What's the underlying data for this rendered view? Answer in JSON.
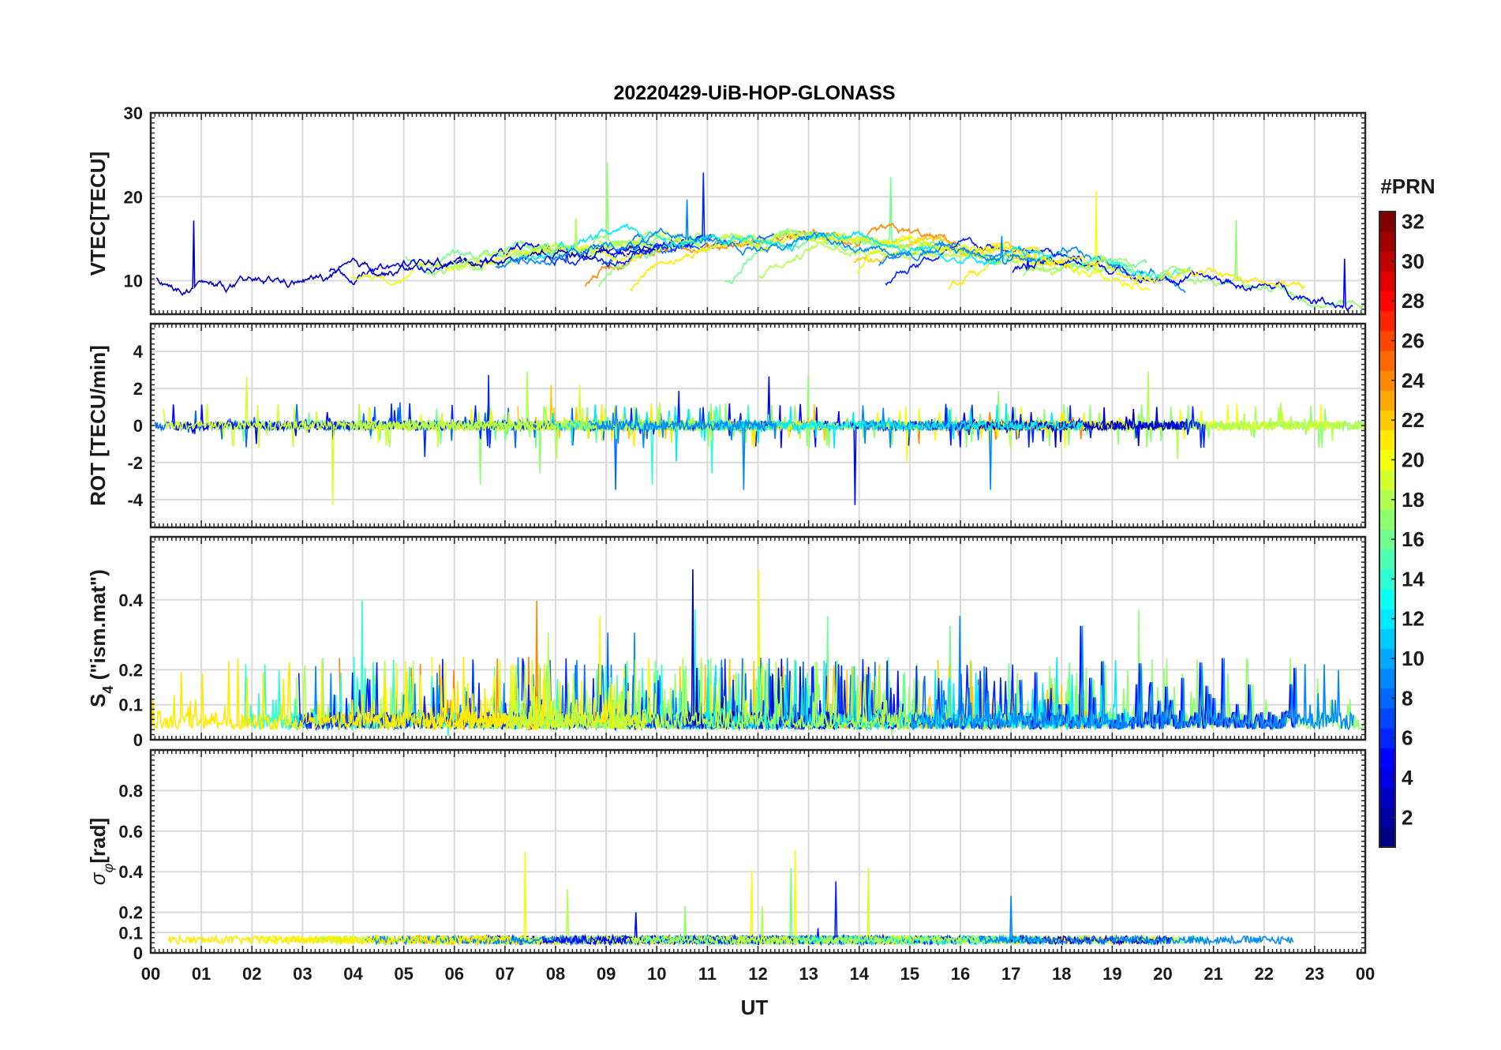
{
  "chart_data": {
    "title": "20220429-UiB-HOP-GLONASS",
    "type": "line",
    "x_label": "UT",
    "x_range": [
      0,
      24
    ],
    "x_tick_labels": [
      "00",
      "01",
      "02",
      "03",
      "04",
      "05",
      "06",
      "07",
      "08",
      "09",
      "10",
      "11",
      "12",
      "13",
      "14",
      "15",
      "16",
      "17",
      "18",
      "19",
      "20",
      "21",
      "22",
      "23",
      "00"
    ],
    "grid": true,
    "series_count": 24,
    "colorbar": {
      "title": "#PRN",
      "range": [
        1,
        32
      ],
      "tick_labels": [
        "2",
        "4",
        "6",
        "8",
        "10",
        "12",
        "14",
        "16",
        "18",
        "20",
        "22",
        "24",
        "26",
        "28",
        "30",
        "32"
      ],
      "colormap": "jet",
      "placement": "right"
    },
    "panels": [
      {
        "name": "vtec",
        "ylabel": "VTEC[TECU]",
        "ylim": [
          6,
          30
        ],
        "y_ticks": [
          10,
          20,
          30
        ],
        "y_tick_labels": [
          "10",
          "20",
          "30"
        ],
        "baseline": 11,
        "variation": 4,
        "spike_scale": 10
      },
      {
        "name": "rot",
        "ylabel": "ROT [TECU/min]",
        "ylim": [
          -5.5,
          5.5
        ],
        "y_ticks": [
          -4,
          -2,
          0,
          2,
          4
        ],
        "y_tick_labels": [
          "-4",
          "-2",
          "0",
          "2",
          "4"
        ],
        "baseline": 0,
        "variation": 0.5,
        "spike_scale": 4.5
      },
      {
        "name": "s4",
        "ylabel": "S4 (\"ism.mat\")",
        "ylabel_main": "S",
        "ylabel_sub": "4",
        "ylabel_rest": " (\"ism.mat\")",
        "ylim": [
          0,
          0.58
        ],
        "y_ticks": [
          0,
          0.1,
          0.2,
          0.4
        ],
        "y_tick_labels": [
          "0",
          "0.1",
          "0.2",
          "0.4"
        ],
        "baseline": 0.03,
        "variation": 0.12,
        "spike_scale": 0.5
      },
      {
        "name": "sigma_phi",
        "ylabel": "σφ[rad]",
        "ylabel_main": "σ",
        "ylabel_sub": "φ",
        "ylabel_rest": "[rad]",
        "ylim": [
          0,
          1.0
        ],
        "y_ticks": [
          0,
          0.1,
          0.2,
          0.4,
          0.6,
          0.8
        ],
        "y_tick_labels": [
          "0",
          "0.1",
          "0.2",
          "0.4",
          "0.6",
          "0.8"
        ],
        "baseline": 0.06,
        "variation": 0.04,
        "spike_scale": 0.45
      }
    ]
  }
}
